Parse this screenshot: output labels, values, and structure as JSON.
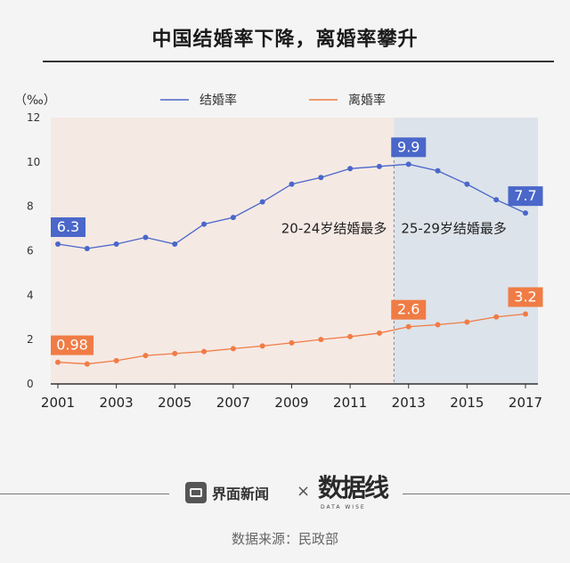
{
  "title": "中国结婚率下降，离婚率攀升",
  "footer": {
    "brand": "界面新闻",
    "times": "×",
    "partner": "数据线",
    "partner_sub": "DATA WISE",
    "source": "数据来源：民政部"
  },
  "colors": {
    "marriage": "#4a67c9",
    "divorce": "#f07c45",
    "bg_left": "#f5e9e4",
    "bg_right": "#dde3ea"
  },
  "chart_data": {
    "type": "line",
    "unit_label": "（‰）",
    "x": [
      2001,
      2002,
      2003,
      2004,
      2005,
      2006,
      2007,
      2008,
      2009,
      2010,
      2011,
      2012,
      2013,
      2014,
      2015,
      2016,
      2017
    ],
    "x_ticks": [
      "2001",
      "2003",
      "2005",
      "2007",
      "2009",
      "2011",
      "2013",
      "2015",
      "2017"
    ],
    "y_ticks": [
      "0",
      "2",
      "4",
      "6",
      "8",
      "10",
      "12"
    ],
    "ylim": [
      0,
      12
    ],
    "legend_position": "top",
    "series": [
      {
        "name": "结婚率",
        "values": [
          6.3,
          6.1,
          6.3,
          6.6,
          6.3,
          7.2,
          7.5,
          8.2,
          9.0,
          9.3,
          9.7,
          9.8,
          9.9,
          9.6,
          9.0,
          8.3,
          7.7
        ]
      },
      {
        "name": "离婚率",
        "values": [
          0.98,
          0.9,
          1.05,
          1.28,
          1.37,
          1.46,
          1.59,
          1.71,
          1.85,
          2.0,
          2.13,
          2.29,
          2.58,
          2.67,
          2.79,
          3.02,
          3.15
        ]
      }
    ],
    "value_labels": [
      {
        "series": 0,
        "index": 0,
        "text": "6.3"
      },
      {
        "series": 0,
        "index": 12,
        "text": "9.9"
      },
      {
        "series": 0,
        "index": 16,
        "text": "7.7"
      },
      {
        "series": 1,
        "index": 0,
        "text": "0.98"
      },
      {
        "series": 1,
        "index": 12,
        "text": "2.6"
      },
      {
        "series": 1,
        "index": 16,
        "text": "3.2"
      }
    ],
    "shaded_split_x": 2012.5,
    "annotations": [
      {
        "text": "20-24岁结婚最多"
      },
      {
        "text": "25-29岁结婚最多"
      }
    ]
  }
}
